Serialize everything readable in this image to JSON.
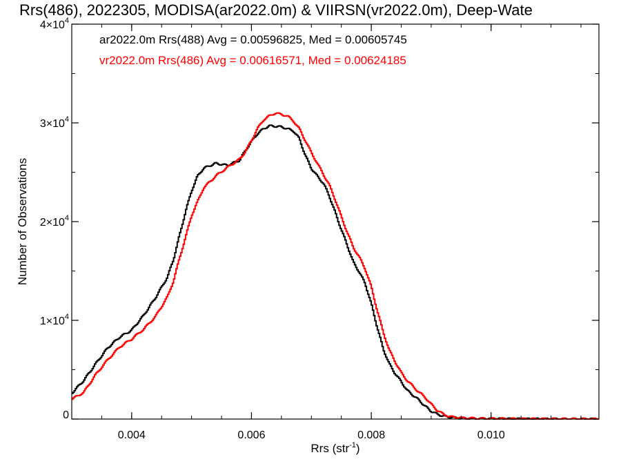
{
  "chart_data": {
    "type": "line",
    "title": "Rrs(486), 2022305, MODISA(ar2022.0m) & VIIRSN(vr2022.0m), Deep-Wate",
    "xlabel": "Rrs (str",
    "xlabel_sup": "-1",
    "xlabel_close": ")",
    "ylabel": "Number of Observations",
    "xlim": [
      0.003,
      0.0118
    ],
    "ylim": [
      0,
      40000
    ],
    "x_ticks": [
      {
        "value": 0.004,
        "label": "0.004"
      },
      {
        "value": 0.006,
        "label": "0.006"
      },
      {
        "value": 0.008,
        "label": "0.008"
      },
      {
        "value": 0.01,
        "label": "0.010"
      }
    ],
    "y_ticks": [
      {
        "value": 0,
        "mant": "0",
        "exp": ""
      },
      {
        "value": 10000,
        "mant": "1×10",
        "exp": "4"
      },
      {
        "value": 20000,
        "mant": "2×10",
        "exp": "4"
      },
      {
        "value": 30000,
        "mant": "3×10",
        "exp": "4"
      },
      {
        "value": 40000,
        "mant": "4×10",
        "exp": "4"
      }
    ],
    "x_minor_step": 0.0005,
    "y_minor_step": 5000,
    "grid": false,
    "legend": {
      "position": "top-left",
      "entries": [
        "ar2022.0m Rrs(488) Avg = 0.00596825, Med = 0.00605745",
        "vr2022.0m Rrs(486) Avg = 0.00616571, Med = 0.00624185"
      ]
    },
    "series": [
      {
        "color": "#000000",
        "points": [
          [
            0.003,
            2600
          ],
          [
            0.0032,
            3900
          ],
          [
            0.0034,
            5600
          ],
          [
            0.0036,
            7200
          ],
          [
            0.0038,
            8300
          ],
          [
            0.004,
            9000
          ],
          [
            0.0042,
            10500
          ],
          [
            0.0044,
            12300
          ],
          [
            0.0046,
            14400
          ],
          [
            0.0047,
            16200
          ],
          [
            0.0048,
            18600
          ],
          [
            0.0049,
            21000
          ],
          [
            0.005,
            23100
          ],
          [
            0.0051,
            24600
          ],
          [
            0.0052,
            25400
          ],
          [
            0.0054,
            25900
          ],
          [
            0.0056,
            25700
          ],
          [
            0.0058,
            26200
          ],
          [
            0.0059,
            27200
          ],
          [
            0.006,
            28100
          ],
          [
            0.0061,
            28900
          ],
          [
            0.0062,
            29400
          ],
          [
            0.0063,
            29700
          ],
          [
            0.0065,
            29600
          ],
          [
            0.0067,
            29200
          ],
          [
            0.0068,
            28400
          ],
          [
            0.0069,
            26700
          ],
          [
            0.007,
            25400
          ],
          [
            0.0071,
            24600
          ],
          [
            0.0072,
            23900
          ],
          [
            0.0073,
            22600
          ],
          [
            0.0074,
            20900
          ],
          [
            0.0075,
            19200
          ],
          [
            0.0076,
            17600
          ],
          [
            0.0077,
            15900
          ],
          [
            0.0078,
            14900
          ],
          [
            0.0079,
            13700
          ],
          [
            0.008,
            11700
          ],
          [
            0.0081,
            9300
          ],
          [
            0.0082,
            7100
          ],
          [
            0.0083,
            5600
          ],
          [
            0.0084,
            4600
          ],
          [
            0.0085,
            3800
          ],
          [
            0.0086,
            2900
          ],
          [
            0.0087,
            2400
          ],
          [
            0.0088,
            1900
          ],
          [
            0.0089,
            1300
          ],
          [
            0.009,
            800
          ],
          [
            0.0091,
            500
          ],
          [
            0.0092,
            300
          ],
          [
            0.0094,
            130
          ],
          [
            0.0096,
            60
          ],
          [
            0.01,
            25
          ],
          [
            0.0105,
            10
          ],
          [
            0.0118,
            0
          ]
        ]
      },
      {
        "color": "#ff0000",
        "points": [
          [
            0.003,
            2000
          ],
          [
            0.0032,
            2700
          ],
          [
            0.0034,
            4500
          ],
          [
            0.0036,
            6000
          ],
          [
            0.0038,
            7300
          ],
          [
            0.004,
            8100
          ],
          [
            0.0042,
            9100
          ],
          [
            0.0044,
            10400
          ],
          [
            0.0046,
            12400
          ],
          [
            0.0047,
            14000
          ],
          [
            0.0048,
            16300
          ],
          [
            0.0049,
            18400
          ],
          [
            0.005,
            20600
          ],
          [
            0.0051,
            22000
          ],
          [
            0.0052,
            23400
          ],
          [
            0.0054,
            24600
          ],
          [
            0.0056,
            25500
          ],
          [
            0.0058,
            26300
          ],
          [
            0.0059,
            27100
          ],
          [
            0.006,
            28200
          ],
          [
            0.0061,
            29400
          ],
          [
            0.0062,
            30300
          ],
          [
            0.0063,
            30700
          ],
          [
            0.0064,
            31000
          ],
          [
            0.0066,
            30700
          ],
          [
            0.0067,
            30200
          ],
          [
            0.0068,
            29400
          ],
          [
            0.0069,
            28200
          ],
          [
            0.007,
            27000
          ],
          [
            0.0071,
            25900
          ],
          [
            0.0072,
            24800
          ],
          [
            0.0073,
            23700
          ],
          [
            0.0074,
            22200
          ],
          [
            0.0075,
            20500
          ],
          [
            0.0076,
            18900
          ],
          [
            0.0077,
            17400
          ],
          [
            0.0078,
            16400
          ],
          [
            0.0079,
            15200
          ],
          [
            0.008,
            13400
          ],
          [
            0.0081,
            11000
          ],
          [
            0.0082,
            8800
          ],
          [
            0.0083,
            7000
          ],
          [
            0.0084,
            5800
          ],
          [
            0.0085,
            4700
          ],
          [
            0.0086,
            3900
          ],
          [
            0.0087,
            3300
          ],
          [
            0.0088,
            2700
          ],
          [
            0.0089,
            2200
          ],
          [
            0.009,
            1500
          ],
          [
            0.0091,
            900
          ],
          [
            0.0092,
            500
          ],
          [
            0.0093,
            250
          ],
          [
            0.0095,
            120
          ],
          [
            0.0098,
            60
          ],
          [
            0.0102,
            30
          ],
          [
            0.0108,
            10
          ],
          [
            0.0118,
            0
          ]
        ]
      }
    ]
  }
}
